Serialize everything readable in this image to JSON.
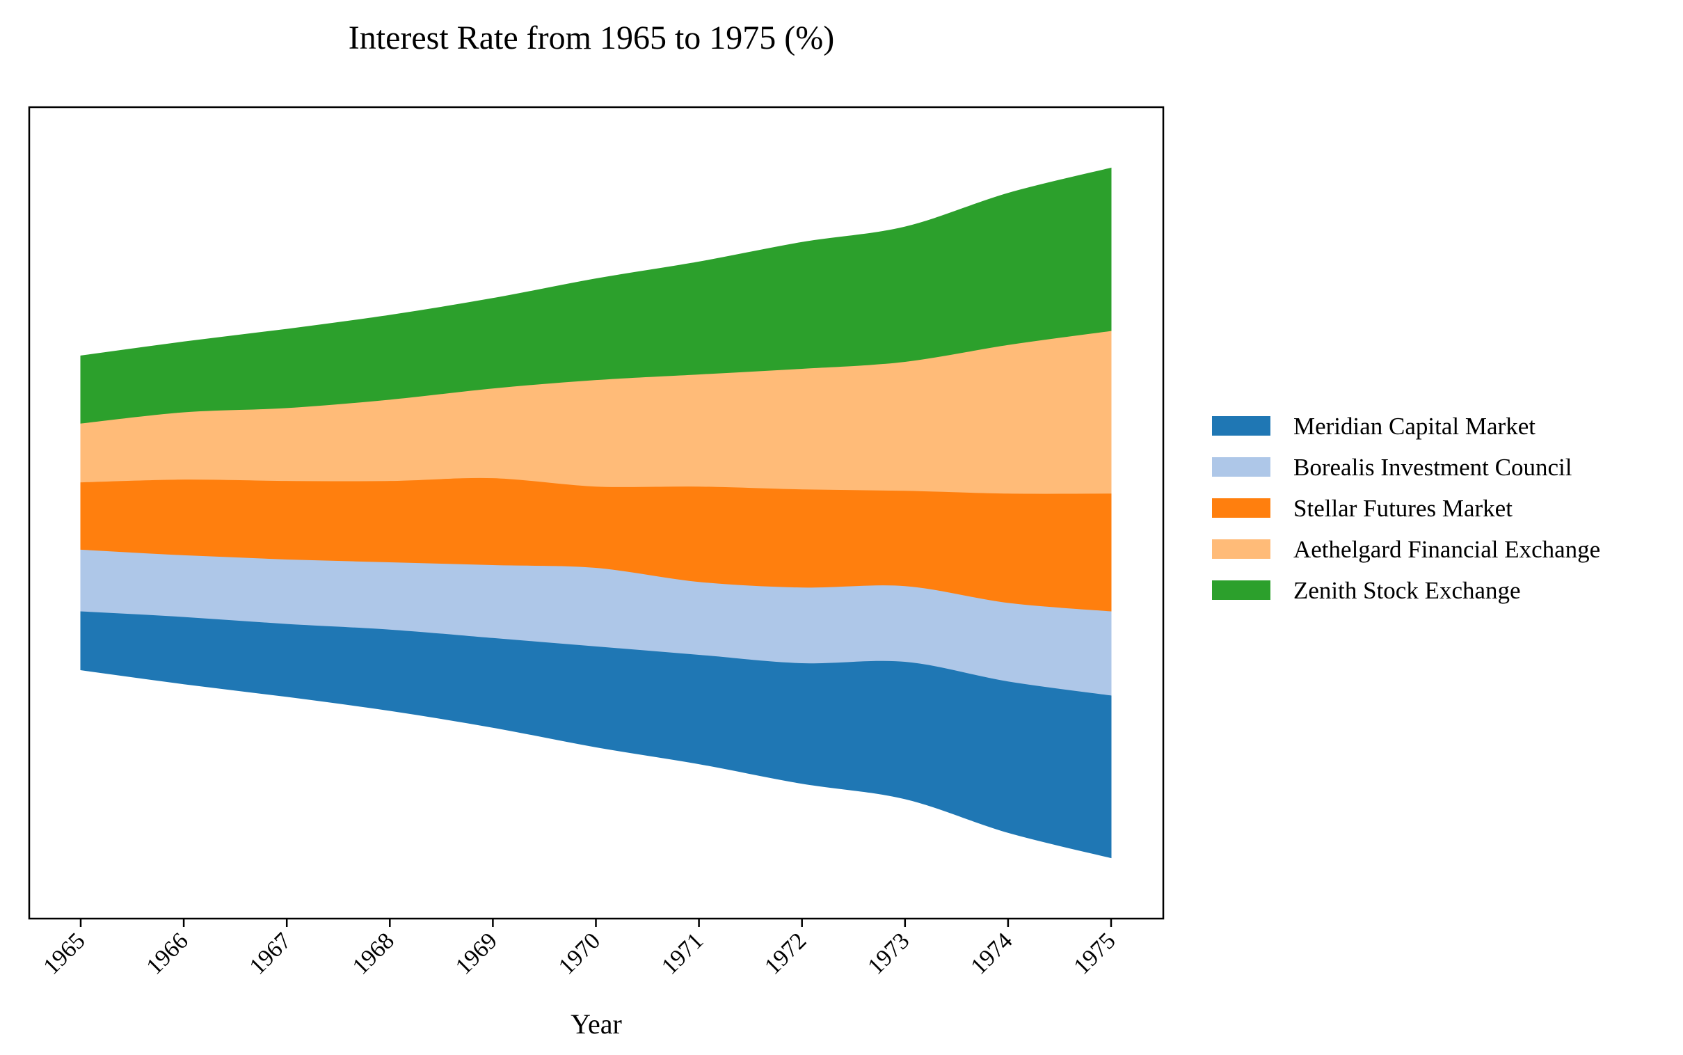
{
  "chart_data": {
    "type": "area",
    "subtype": "streamgraph",
    "title": "Interest Rate from 1965 to 1975 (%)",
    "xlabel": "Year",
    "ylabel": "",
    "x": [
      "1965",
      "1966",
      "1967",
      "1968",
      "1969",
      "1970",
      "1971",
      "1972",
      "1973",
      "1974",
      "1975"
    ],
    "y_ticks_visible": false,
    "legend_position": "right",
    "grid": false,
    "series": [
      {
        "name": "Meridian Capital Market",
        "color": "#1f77b4",
        "values": [
          1.05,
          1.2,
          1.3,
          1.45,
          1.6,
          1.8,
          1.95,
          2.15,
          2.45,
          2.7,
          2.9
        ]
      },
      {
        "name": "Borealis Investment Council",
        "color": "#aec7e8",
        "values": [
          1.1,
          1.1,
          1.15,
          1.2,
          1.3,
          1.4,
          1.3,
          1.35,
          1.35,
          1.4,
          1.5
        ]
      },
      {
        "name": "Stellar Futures Market",
        "color": "#ff7f0e",
        "values": [
          1.2,
          1.35,
          1.4,
          1.45,
          1.55,
          1.45,
          1.7,
          1.75,
          1.7,
          1.95,
          2.1
        ]
      },
      {
        "name": "Aethelgard Financial Exchange",
        "color": "#ffbb78",
        "values": [
          1.05,
          1.2,
          1.3,
          1.45,
          1.6,
          1.9,
          2.0,
          2.15,
          2.3,
          2.65,
          2.9
        ]
      },
      {
        "name": "Zenith Stock Exchange",
        "color": "#2ca02c",
        "values": [
          1.2,
          1.25,
          1.4,
          1.5,
          1.6,
          1.8,
          2.0,
          2.25,
          2.4,
          2.7,
          2.9
        ]
      }
    ]
  }
}
